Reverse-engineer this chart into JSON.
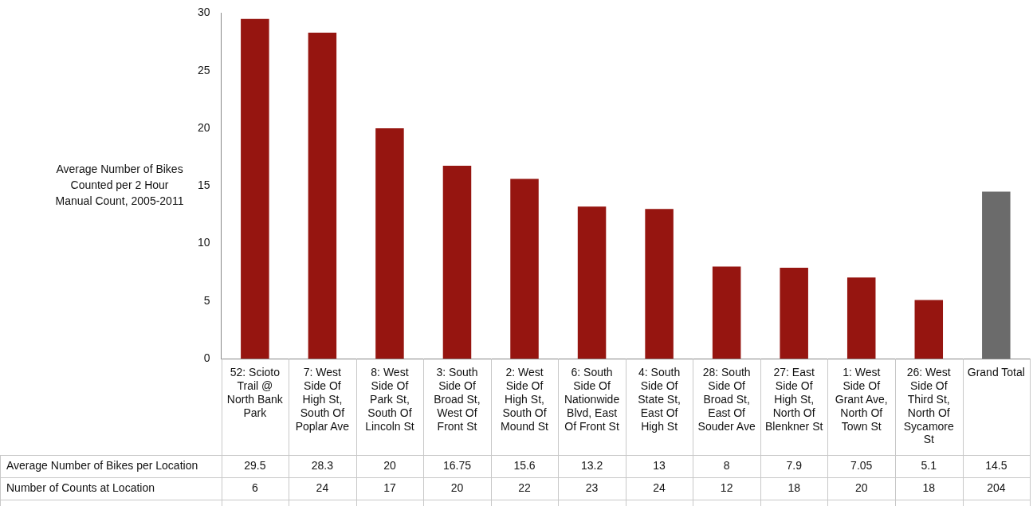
{
  "chart_data": {
    "type": "bar",
    "ylabel": "Average Number of Bikes Counted per 2 Hour Manual Count, 2005-2011",
    "categories": [
      "52: Scioto Trail @ North Bank Park",
      "7: West Side Of High St, South Of Poplar Ave",
      "8: West Side Of Park St, South Of Lincoln St",
      "3: South Side Of Broad St, West Of Front St",
      "2: West Side Of High St, South Of Mound St",
      "6: South Side Of Nationwide Blvd, East Of Front St",
      "4: South Side Of State St, East Of High St",
      "28: South Side Of Broad St, East Of Souder Ave",
      "27: East Side Of High St, North Of Blenkner St",
      "1: West Side Of Grant Ave, North Of Town St",
      "26: West Side Of Third St, North Of Sycamore St",
      "Grand Total"
    ],
    "series": [
      {
        "name": "Average Number of Bikes per Location",
        "values": [
          29.5,
          28.3,
          20,
          16.75,
          15.6,
          13.2,
          13,
          8,
          7.9,
          7.05,
          5.1,
          14.5
        ],
        "colors": [
          "#961510",
          "#961510",
          "#961510",
          "#961510",
          "#961510",
          "#961510",
          "#961510",
          "#961510",
          "#961510",
          "#961510",
          "#961510",
          "#6b6b6b"
        ]
      }
    ],
    "ylim": [
      0,
      30
    ],
    "yticks": [
      0,
      5,
      10,
      15,
      20,
      25,
      30
    ],
    "grid": false,
    "legend": false,
    "data_labels": true,
    "annotations": [
      "Number of Counts at Location",
      "6",
      "24",
      "17",
      "20",
      "22",
      "23",
      "24",
      "12",
      "18",
      "20",
      "18",
      "204"
    ]
  }
}
